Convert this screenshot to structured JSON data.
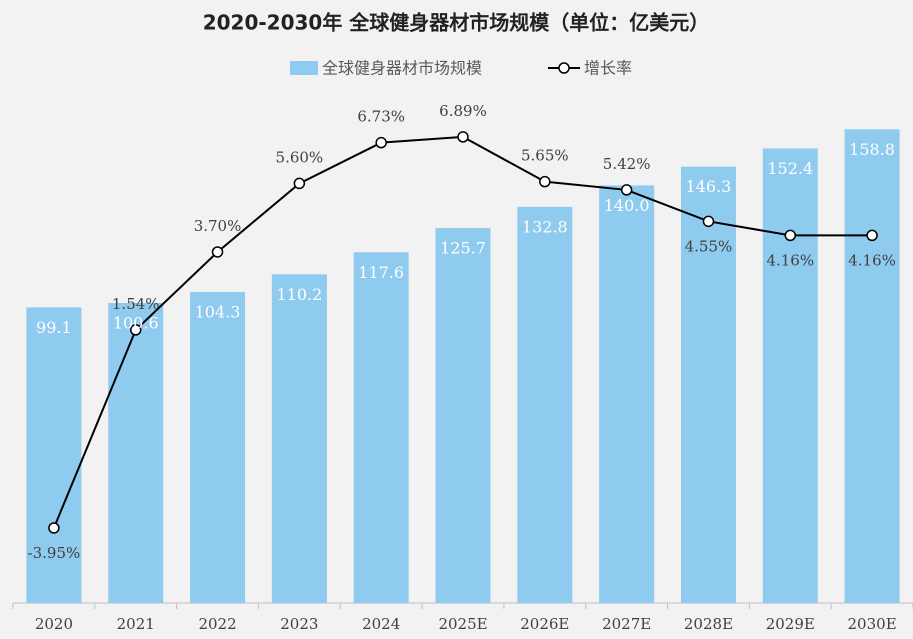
{
  "chart_data": {
    "type": "bar-line",
    "title": "2020-2030年 全球健身器材市场规模（单位：亿美元）",
    "categories": [
      "2020",
      "2021",
      "2022",
      "2023",
      "2024",
      "2025E",
      "2026E",
      "2027E",
      "2028E",
      "2029E",
      "2030E"
    ],
    "series": [
      {
        "name": "全球健身器材市场规模",
        "type": "bar",
        "color": "#8fcaef",
        "values": [
          99.1,
          100.6,
          104.3,
          110.2,
          117.6,
          125.7,
          132.8,
          140.0,
          146.3,
          152.4,
          158.8
        ],
        "value_labels": [
          "99.1",
          "100.6",
          "104.3",
          "110.2",
          "117.6",
          "125.7",
          "132.8",
          "140.0",
          "146.3",
          "152.4",
          "158.8"
        ]
      },
      {
        "name": "增长率",
        "type": "line",
        "axis": "y2",
        "color": "#000000",
        "values": [
          -3.95,
          1.54,
          3.7,
          5.6,
          6.73,
          6.89,
          5.65,
          5.42,
          4.55,
          4.16,
          4.16
        ],
        "value_labels": [
          "-3.95%",
          "1.54%",
          "3.70%",
          "5.60%",
          "6.73%",
          "6.89%",
          "5.65%",
          "5.42%",
          "4.55%",
          "4.16%",
          "4.16%"
        ]
      }
    ],
    "ylim": [
      0,
      172
    ],
    "y2lim": [
      -6.03,
      8.19
    ],
    "legend": "top"
  }
}
